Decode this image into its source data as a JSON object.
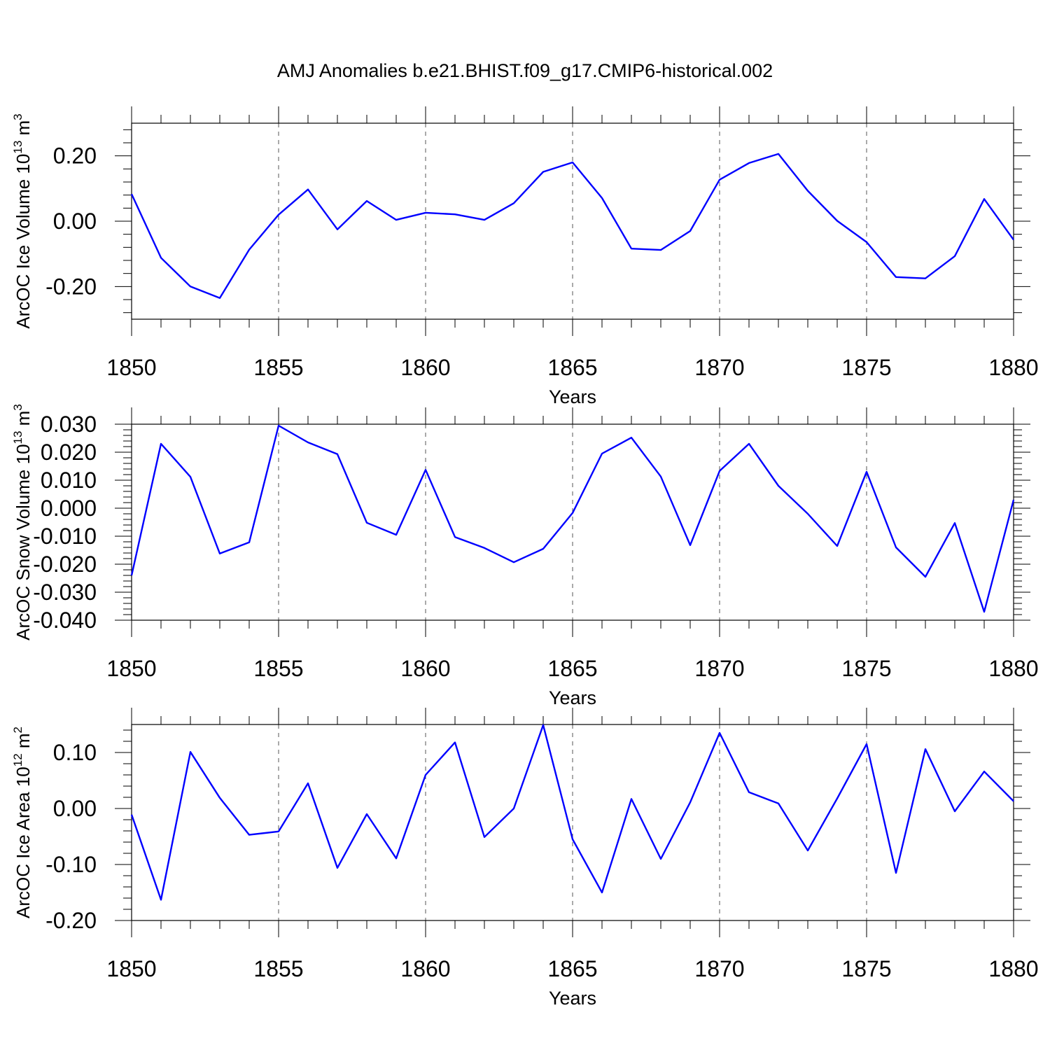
{
  "figure": {
    "title": "AMJ Anomalies b.e21.BHIST.f09_g17.CMIP6-historical.002",
    "line_color": "#0000ff",
    "axis_color": "#000000",
    "grid_color": "#555555"
  },
  "chart_data": [
    {
      "type": "line",
      "title": "AMJ Anomalies b.e21.BHIST.f09_g17.CMIP6-historical.002",
      "xlabel": "Years",
      "ylabel": {
        "main": "ArcOC Ice Volume 10",
        "sup1": "13",
        "unit": " m",
        "sup2": "3"
      },
      "xlim": [
        1850,
        1880
      ],
      "ylim": [
        -0.3,
        0.3
      ],
      "xticks": [
        1850,
        1855,
        1860,
        1865,
        1870,
        1875,
        1880
      ],
      "yticks": [
        -0.2,
        0.0,
        0.2
      ],
      "ytick_labels": [
        "-0.20",
        "0.00",
        "0.20"
      ],
      "x": [
        1850,
        1851,
        1852,
        1853,
        1854,
        1855,
        1856,
        1857,
        1858,
        1859,
        1860,
        1861,
        1862,
        1863,
        1864,
        1865,
        1866,
        1867,
        1868,
        1869,
        1870,
        1871,
        1872,
        1873,
        1874,
        1875,
        1876,
        1877,
        1878,
        1879,
        1880
      ],
      "series": [
        {
          "name": "ArcOC Ice Volume",
          "values": [
            0.083,
            -0.112,
            -0.2,
            -0.235,
            -0.087,
            0.02,
            0.097,
            -0.025,
            0.062,
            0.004,
            0.026,
            0.021,
            0.004,
            0.055,
            0.151,
            0.18,
            0.071,
            -0.084,
            -0.088,
            -0.03,
            0.127,
            0.178,
            0.206,
            0.093,
            0.001,
            -0.064,
            -0.171,
            -0.175,
            -0.107,
            0.068,
            -0.057
          ]
        }
      ]
    },
    {
      "type": "line",
      "xlabel": "Years",
      "ylabel": {
        "main": "ArcOC Snow Volume 10",
        "sup1": "13",
        "unit": " m",
        "sup2": "3"
      },
      "xlim": [
        1850,
        1880
      ],
      "ylim": [
        -0.04,
        0.03
      ],
      "xticks": [
        1850,
        1855,
        1860,
        1865,
        1870,
        1875,
        1880
      ],
      "yticks": [
        -0.04,
        -0.03,
        -0.02,
        -0.01,
        0.0,
        0.01,
        0.02,
        0.03
      ],
      "ytick_labels": [
        "-0.040",
        "-0.030",
        "-0.020",
        "-0.010",
        "0.000",
        "0.010",
        "0.020",
        "0.030"
      ],
      "x": [
        1850,
        1851,
        1852,
        1853,
        1854,
        1855,
        1856,
        1857,
        1858,
        1859,
        1860,
        1861,
        1862,
        1863,
        1864,
        1865,
        1866,
        1867,
        1868,
        1869,
        1870,
        1871,
        1872,
        1873,
        1874,
        1875,
        1876,
        1877,
        1878,
        1879,
        1880
      ],
      "series": [
        {
          "name": "ArcOC Snow Volume",
          "values": [
            -0.024,
            0.023,
            0.0112,
            -0.0162,
            -0.0122,
            0.0295,
            0.0235,
            0.0193,
            -0.0052,
            -0.0095,
            0.0137,
            -0.0103,
            -0.0142,
            -0.0193,
            -0.0145,
            -0.0017,
            0.0195,
            0.0252,
            0.0113,
            -0.0132,
            0.0133,
            0.023,
            0.008,
            -0.002,
            -0.0135,
            0.013,
            -0.014,
            -0.0245,
            -0.0053,
            -0.037,
            0.003
          ]
        }
      ]
    },
    {
      "type": "line",
      "xlabel": "Years",
      "ylabel": {
        "main": "ArcOC Ice Area 10",
        "sup1": "12",
        "unit": " m",
        "sup2": "2"
      },
      "xlim": [
        1850,
        1880
      ],
      "ylim": [
        -0.2,
        0.15
      ],
      "xticks": [
        1850,
        1855,
        1860,
        1865,
        1870,
        1875,
        1880
      ],
      "yticks": [
        -0.2,
        -0.1,
        0.0,
        0.1
      ],
      "ytick_labels": [
        "-0.20",
        "-0.10",
        "0.00",
        "0.10"
      ],
      "x": [
        1850,
        1851,
        1852,
        1853,
        1854,
        1855,
        1856,
        1857,
        1858,
        1859,
        1860,
        1861,
        1862,
        1863,
        1864,
        1865,
        1866,
        1867,
        1868,
        1869,
        1870,
        1871,
        1872,
        1873,
        1874,
        1875,
        1876,
        1877,
        1878,
        1879,
        1880
      ],
      "series": [
        {
          "name": "ArcOC Ice Area",
          "values": [
            -0.011,
            -0.163,
            0.101,
            0.019,
            -0.047,
            -0.041,
            0.045,
            -0.106,
            -0.01,
            -0.089,
            0.06,
            0.118,
            -0.051,
            0.0,
            0.149,
            -0.055,
            -0.15,
            0.017,
            -0.09,
            0.011,
            0.135,
            0.029,
            0.009,
            -0.075,
            0.018,
            0.115,
            -0.115,
            0.106,
            -0.005,
            0.066,
            0.013
          ]
        }
      ]
    }
  ]
}
